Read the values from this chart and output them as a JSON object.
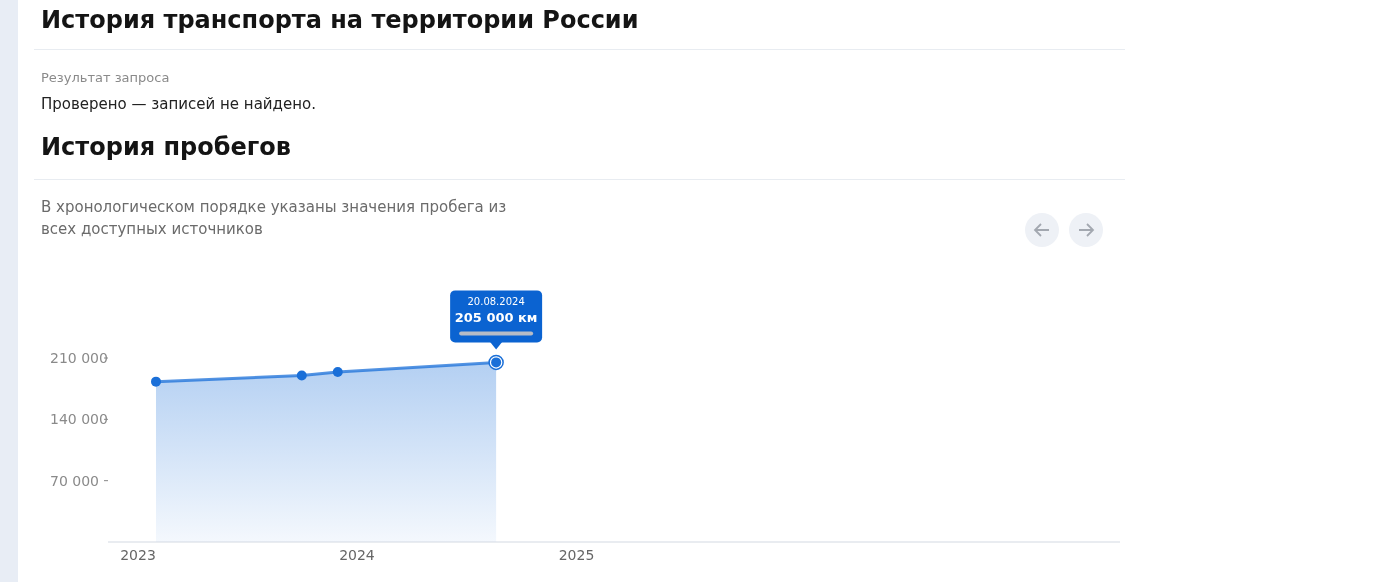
{
  "chart_data": {
    "type": "area",
    "title": "История пробегов",
    "subtitle": "В хронологическом порядке указаны значения пробега из всех доступных источников",
    "annotations": [
      "История транспорта на территории России",
      "Результат запроса",
      "Проверено — записей не найдено.",
      "20.08.2024",
      {
        "text": "205 000 км",
        "x": "2024-08-20",
        "y": 205000
      }
    ],
    "x": [
      "2023-01-31",
      "2023-10-01",
      "2023-11-30",
      "2024-08-20"
    ],
    "series": [
      {
        "color": "#1a6fd8",
        "values": [
          183000,
          190000,
          194000,
          205000
        ]
      }
    ],
    "xlim": [
      "2022-11-12",
      "2027-06-26"
    ],
    "xticks": [
      "2023",
      "2024",
      "2025"
    ],
    "ylim": [
      0,
      210000
    ],
    "yticks": [
      70000,
      140000,
      210000
    ],
    "marker": "circle",
    "grid": false,
    "legend": false
  }
}
